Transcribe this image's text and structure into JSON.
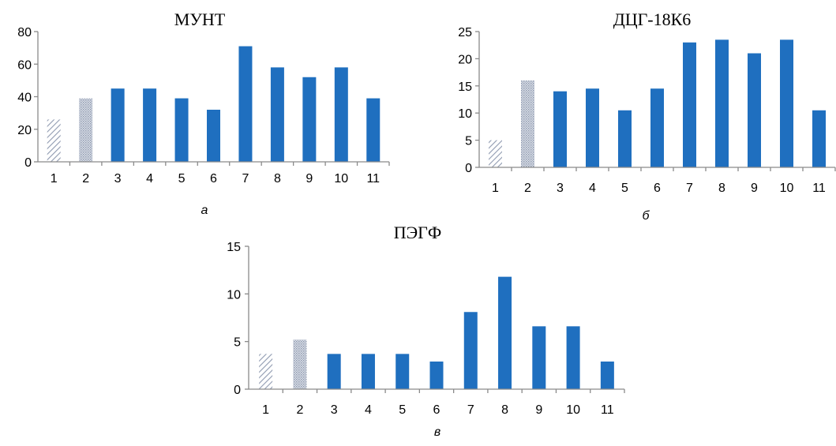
{
  "chart_data": [
    {
      "type": "bar",
      "title": "МУНТ",
      "panel_label": "а",
      "categories": [
        "1",
        "2",
        "3",
        "4",
        "5",
        "6",
        "7",
        "8",
        "9",
        "10",
        "11"
      ],
      "values": [
        26,
        39,
        45,
        45,
        39,
        32,
        71,
        58,
        52,
        58,
        39
      ],
      "bar_fills": [
        "hatch-diagonal",
        "hatch-dots",
        "solid",
        "solid",
        "solid",
        "solid",
        "solid",
        "solid",
        "solid",
        "solid",
        "solid"
      ],
      "ylim": [
        0,
        80
      ],
      "yticks": [
        0,
        20,
        40,
        60,
        80
      ],
      "xlabel": "",
      "ylabel": "",
      "grid": false,
      "colors": {
        "bar": "#1f6fbf",
        "hatch": "#9aa4b8",
        "axis": "#8a8a8a"
      }
    },
    {
      "type": "bar",
      "title": "ДЦГ-18К6",
      "panel_label": "б",
      "categories": [
        "1",
        "2",
        "3",
        "4",
        "5",
        "6",
        "7",
        "8",
        "9",
        "10",
        "11"
      ],
      "values": [
        5,
        16,
        14,
        14.5,
        10.5,
        14.5,
        23,
        23.5,
        21,
        23.5,
        10.5
      ],
      "bar_fills": [
        "hatch-diagonal",
        "hatch-dots",
        "solid",
        "solid",
        "solid",
        "solid",
        "solid",
        "solid",
        "solid",
        "solid",
        "solid"
      ],
      "ylim": [
        0,
        25
      ],
      "yticks": [
        0,
        5,
        10,
        15,
        20,
        25
      ],
      "xlabel": "",
      "ylabel": "",
      "grid": false,
      "colors": {
        "bar": "#1f6fbf",
        "hatch": "#9aa4b8",
        "axis": "#8a8a8a"
      }
    },
    {
      "type": "bar",
      "title": "ПЭГФ",
      "panel_label": "в",
      "categories": [
        "1",
        "2",
        "3",
        "4",
        "5",
        "6",
        "7",
        "8",
        "9",
        "10",
        "11"
      ],
      "values": [
        3.7,
        5.2,
        3.7,
        3.7,
        3.7,
        2.9,
        8.1,
        11.8,
        6.6,
        6.6,
        2.9
      ],
      "bar_fills": [
        "hatch-diagonal",
        "hatch-dots",
        "solid",
        "solid",
        "solid",
        "solid",
        "solid",
        "solid",
        "solid",
        "solid",
        "solid"
      ],
      "ylim": [
        0,
        15
      ],
      "yticks": [
        0,
        5,
        10,
        15
      ],
      "xlabel": "",
      "ylabel": "",
      "grid": false,
      "colors": {
        "bar": "#1f6fbf",
        "hatch": "#9aa4b8",
        "axis": "#8a8a8a"
      }
    }
  ]
}
